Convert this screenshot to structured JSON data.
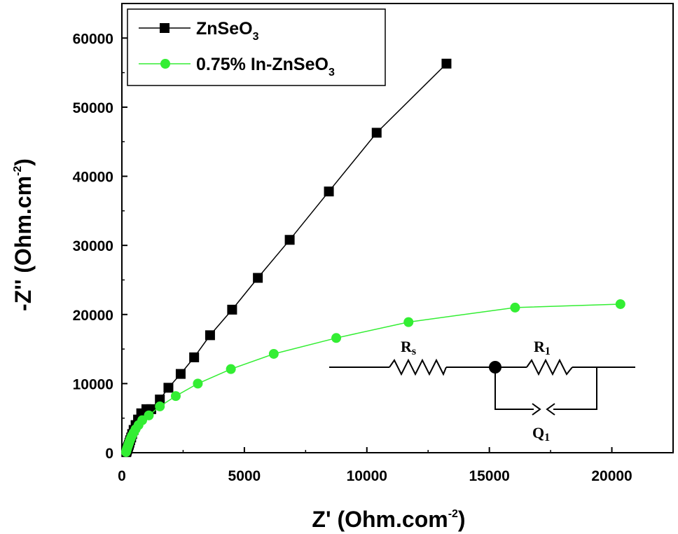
{
  "chart_data": {
    "type": "line",
    "xlabel": {
      "main": "Z' (Ohm.com",
      "sup": "-2",
      "close": ")"
    },
    "ylabel": {
      "main": "-Z'' (Ohm.cm",
      "sup": "-2",
      "close": ")"
    },
    "xlim": [
      0,
      22500
    ],
    "ylim": [
      0,
      65000
    ],
    "xticks": [
      0,
      5000,
      10000,
      15000,
      20000
    ],
    "yticks": [
      0,
      10000,
      20000,
      30000,
      40000,
      50000,
      60000
    ],
    "xtick_labels": [
      "0",
      "5000",
      "10000",
      "15000",
      "20000"
    ],
    "ytick_labels": [
      "0",
      "10000",
      "20000",
      "30000",
      "40000",
      "50000",
      "60000"
    ],
    "grid": false,
    "legend_position": "top-left",
    "series": [
      {
        "name": "ZnSeO3",
        "legend_main": "ZnSeO",
        "legend_sub": "3",
        "color": "#000000",
        "marker": "square",
        "points": [
          [
            180,
            80
          ],
          [
            190,
            200
          ],
          [
            205,
            350
          ],
          [
            220,
            520
          ],
          [
            240,
            700
          ],
          [
            260,
            900
          ],
          [
            285,
            1150
          ],
          [
            310,
            1450
          ],
          [
            340,
            1800
          ],
          [
            380,
            2200
          ],
          [
            420,
            2700
          ],
          [
            480,
            3300
          ],
          [
            560,
            4000
          ],
          [
            660,
            4800
          ],
          [
            790,
            5700
          ],
          [
            1000,
            6300
          ],
          [
            1200,
            6300
          ],
          [
            1550,
            7700
          ],
          [
            1900,
            9400
          ],
          [
            2400,
            11400
          ],
          [
            2950,
            13800
          ],
          [
            3600,
            17000
          ],
          [
            4500,
            20700
          ],
          [
            5550,
            25300
          ],
          [
            6850,
            30800
          ],
          [
            8450,
            37800
          ],
          [
            10400,
            46300
          ],
          [
            13250,
            56300
          ]
        ]
      },
      {
        "name": "0.75% In-ZnSeO3",
        "legend_main": "0.75% In-ZnSeO",
        "legend_sub": "3",
        "color": "#33ee33",
        "marker": "circle",
        "points": [
          [
            170,
            100
          ],
          [
            180,
            250
          ],
          [
            195,
            420
          ],
          [
            210,
            600
          ],
          [
            230,
            820
          ],
          [
            255,
            1050
          ],
          [
            285,
            1350
          ],
          [
            320,
            1700
          ],
          [
            360,
            2050
          ],
          [
            410,
            2450
          ],
          [
            480,
            2900
          ],
          [
            560,
            3400
          ],
          [
            680,
            4000
          ],
          [
            830,
            4700
          ],
          [
            1100,
            5400
          ],
          [
            1550,
            6700
          ],
          [
            2200,
            8200
          ],
          [
            3100,
            10000
          ],
          [
            4450,
            12100
          ],
          [
            6200,
            14300
          ],
          [
            8750,
            16600
          ],
          [
            11700,
            18900
          ],
          [
            16050,
            21000
          ],
          [
            20350,
            21500
          ]
        ]
      }
    ],
    "inset_circuit": {
      "labels": {
        "rs_main": "R",
        "rs_sub": "s",
        "r1_main": "R",
        "r1_sub": "1",
        "q1_main": "Q",
        "q1_sub": "1"
      }
    }
  }
}
